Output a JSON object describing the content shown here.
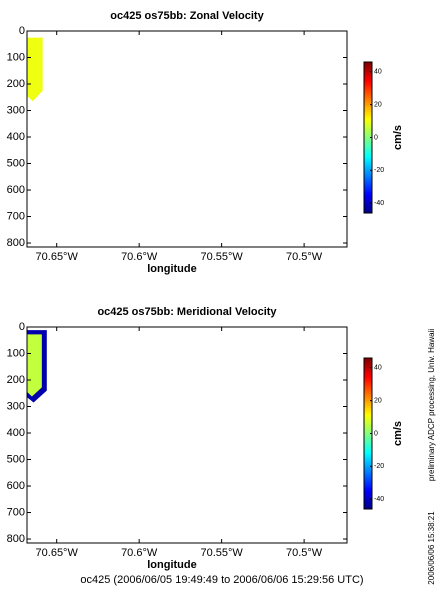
{
  "chart_data": [
    {
      "type": "contour",
      "title": "oc425 os75bb: Zonal Velocity",
      "xlabel": "longitude",
      "xlim": [
        -70.668,
        -70.474
      ],
      "ylim": [
        815,
        0
      ],
      "xticks": [
        {
          "value": -70.65,
          "label": "70.65°W"
        },
        {
          "value": -70.6,
          "label": "70.6°W"
        },
        {
          "value": -70.55,
          "label": "70.55°W"
        },
        {
          "value": -70.5,
          "label": "70.5°W"
        }
      ],
      "yticks": [
        0,
        100,
        200,
        300,
        400,
        500,
        600,
        700,
        800
      ],
      "colorbar": {
        "label": "cm/s",
        "clim": [
          -46,
          46
        ],
        "ticks": [
          -40,
          -20,
          0,
          20,
          40
        ],
        "colormap": "jet"
      },
      "regions": [
        {
          "value": 10,
          "x": [
            -70.668,
            -70.6585,
            -70.6585,
            -70.6645,
            -70.668
          ],
          "y": [
            25,
            25,
            225,
            265,
            245
          ]
        }
      ]
    },
    {
      "type": "contour",
      "title": "oc425 os75bb: Meridional Velocity",
      "xlabel": "longitude",
      "xlim": [
        -70.668,
        -70.474
      ],
      "ylim": [
        815,
        0
      ],
      "xticks": [
        {
          "value": -70.65,
          "label": "70.65°W"
        },
        {
          "value": -70.6,
          "label": "70.6°W"
        },
        {
          "value": -70.55,
          "label": "70.55°W"
        },
        {
          "value": -70.5,
          "label": "70.5°W"
        }
      ],
      "yticks": [
        0,
        100,
        200,
        300,
        400,
        500,
        600,
        700,
        800
      ],
      "colorbar": {
        "label": "cm/s",
        "clim": [
          -46,
          46
        ],
        "ticks": [
          -40,
          -20,
          0,
          20,
          40
        ],
        "colormap": "jet"
      },
      "regions": [
        {
          "value": -42,
          "x": [
            -70.668,
            -70.656,
            -70.656,
            -70.664,
            -70.668
          ],
          "y": [
            12,
            12,
            240,
            285,
            265
          ]
        },
        {
          "value": 6,
          "x": [
            -70.668,
            -70.659,
            -70.659,
            -70.665,
            -70.668
          ],
          "y": [
            28,
            28,
            228,
            262,
            245
          ]
        }
      ]
    }
  ],
  "footer": "oc425 (2006/06/05 19:49:49 to 2006/06/06 15:29:56 UTC)",
  "side_note": "preliminary ADCP processing,  Univ. Hawaii",
  "timestamp": "2006/06/06 15:38:21"
}
